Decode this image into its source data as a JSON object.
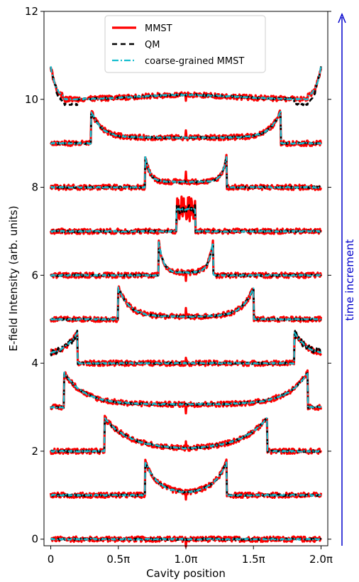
{
  "chart_data": {
    "type": "line",
    "title": "",
    "xlabel": "Cavity position",
    "ylabel": "E-field Intensity (arb. units)",
    "xlim": [
      -0.05,
      2.05
    ],
    "ylim": [
      -0.15,
      12
    ],
    "xticks": [
      0,
      0.5,
      1.0,
      1.5,
      2.0
    ],
    "xtick_labels": [
      "0",
      "0.5π",
      "1.0π",
      "1.5π",
      "2.0π"
    ],
    "yticks": [
      0,
      2,
      4,
      6,
      8,
      10,
      12
    ],
    "ytick_labels": [
      "0",
      "2",
      "4",
      "6",
      "8",
      "10",
      "12"
    ],
    "legend_position": "top-center",
    "series": [
      {
        "name": "MMST",
        "color": "#ff0000",
        "style": "solid"
      },
      {
        "name": "QM",
        "color": "#000000",
        "style": "dashed"
      },
      {
        "name": "coarse-grained MMST",
        "color": "#17becf",
        "style": "dashdot"
      }
    ],
    "traces": [
      {
        "offset": 0,
        "front_positions": [],
        "front_height": 0
      },
      {
        "offset": 1,
        "front_positions": [
          0.7,
          1.3
        ],
        "front_height": 0.75
      },
      {
        "offset": 2,
        "front_positions": [
          0.4,
          1.6
        ],
        "front_height": 0.75
      },
      {
        "offset": 3,
        "front_positions": [
          0.1,
          1.9
        ],
        "front_height": 0.78
      },
      {
        "offset": 4,
        "front_positions": [
          0.2,
          1.8
        ],
        "front_height": 0.7
      },
      {
        "offset": 5,
        "front_positions": [
          0.5,
          1.5
        ],
        "front_height": 0.72
      },
      {
        "offset": 6,
        "front_positions": [
          0.8,
          1.2
        ],
        "front_height": 0.75
      },
      {
        "offset": 7,
        "front_positions": [
          0.95,
          1.05
        ],
        "front_height": 0.45
      },
      {
        "offset": 8,
        "front_positions": [
          0.7,
          1.3
        ],
        "front_height": 0.7
      },
      {
        "offset": 9,
        "front_positions": [
          0.3,
          1.7
        ],
        "front_height": 0.72
      },
      {
        "offset": 10,
        "front_positions": [
          0.0,
          2.0
        ],
        "front_height": 0.75
      }
    ],
    "annotation": "time increment",
    "arrow_color": "#0000cc"
  }
}
